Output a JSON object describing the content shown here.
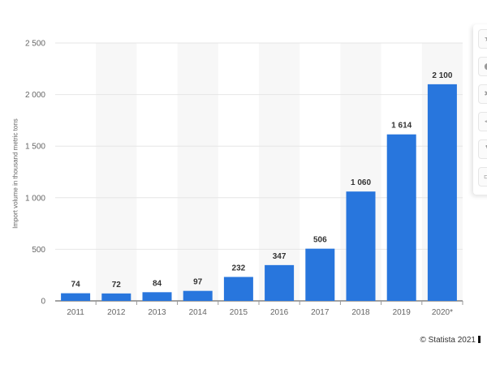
{
  "chart_data": {
    "type": "bar",
    "categories": [
      "2011",
      "2012",
      "2013",
      "2014",
      "2015",
      "2016",
      "2017",
      "2018",
      "2019",
      "2020*"
    ],
    "values": [
      74,
      72,
      84,
      97,
      232,
      347,
      506,
      1060,
      1614,
      2100
    ],
    "value_labels": [
      "74",
      "72",
      "84",
      "97",
      "232",
      "347",
      "506",
      "1 060",
      "1 614",
      "2 100"
    ],
    "ylabel": "Import volume in thousand metric tons",
    "xlabel": "",
    "ylim": [
      0,
      2500
    ],
    "yticks": [
      0,
      500,
      1000,
      1500,
      2000,
      2500
    ],
    "ytick_labels": [
      "0",
      "500",
      "1 000",
      "1 500",
      "2 000",
      "2 500"
    ],
    "grid": true,
    "alternating_column_bands": true,
    "bar_color": "#2876dd"
  },
  "credit": "© Statista 2021",
  "sidebar": {
    "icons": [
      "star-icon",
      "bell-icon",
      "gear-icon",
      "share-icon",
      "quote-icon",
      "print-icon"
    ]
  },
  "colors": {
    "band": "#f7f7f7",
    "grid": "#e6e6e6",
    "axis_text": "#666666",
    "label_text": "#333333"
  }
}
